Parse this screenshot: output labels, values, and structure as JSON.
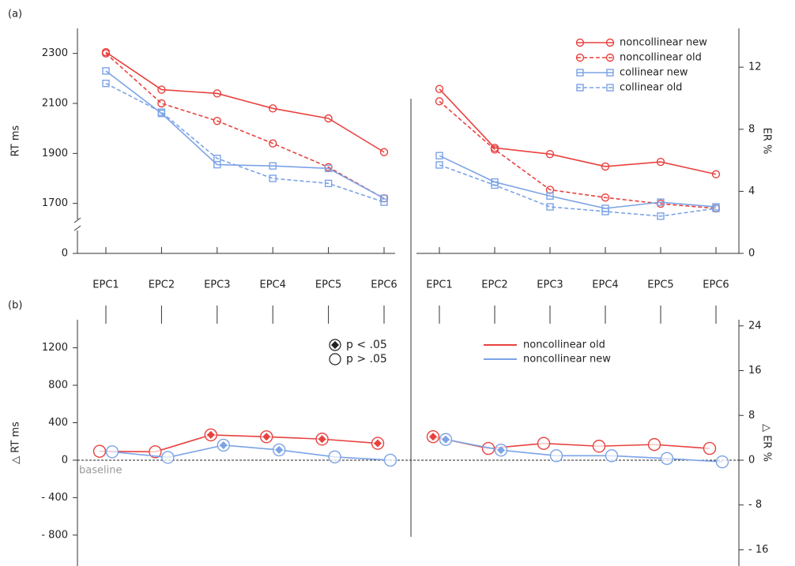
{
  "chart_data": [
    {
      "type": "line",
      "label": "(a)",
      "ylabel": "RT ms",
      "y2label": "ER %",
      "categories": [
        "EPC1",
        "EPC2",
        "EPC3",
        "EPC4",
        "EPC5",
        "EPC6"
      ],
      "ylim": [
        1500,
        2400
      ],
      "yticks": [
        0,
        1700,
        1900,
        2100,
        2300
      ],
      "axis_break": true,
      "y2lim": [
        0,
        14.5
      ],
      "y2ticks": [
        0,
        4,
        8,
        12
      ],
      "legend": "upper right",
      "series": [
        {
          "name": "noncollinear new",
          "color": "#e8423f",
          "dashed": false,
          "marker": "circle",
          "values": [
            2305,
            2155,
            2140,
            2080,
            2040,
            1905
          ],
          "values2": [
            10.6,
            6.8,
            6.4,
            5.6,
            5.9,
            5.1
          ]
        },
        {
          "name": "noncollinear old",
          "color": "#e8423f",
          "dashed": true,
          "marker": "circle",
          "values": [
            2300,
            2100,
            2030,
            1940,
            1845,
            1720
          ],
          "values2": [
            9.8,
            6.7,
            4.1,
            3.6,
            3.2,
            2.9
          ]
        },
        {
          "name": "collinear new",
          "color": "#7ba3e6",
          "dashed": false,
          "marker": "square",
          "values": [
            2230,
            2060,
            1855,
            1850,
            1840,
            1720
          ],
          "values2": [
            6.3,
            4.6,
            3.7,
            2.9,
            3.3,
            3.0
          ]
        },
        {
          "name": "collinear old",
          "color": "#7ba3e6",
          "dashed": true,
          "marker": "square",
          "values": [
            2180,
            2065,
            1880,
            1800,
            1780,
            1705
          ],
          "values2": [
            5.7,
            4.4,
            3.0,
            2.7,
            2.4,
            2.9
          ]
        }
      ]
    },
    {
      "type": "delta",
      "label": "(b)",
      "ylabel": "△ RT ms",
      "y2label": "△ ER %",
      "baseline": "baseline",
      "ylim": [
        -1130,
        1500
      ],
      "yticks": [
        {
          "value": -800,
          "label": "- 800"
        },
        {
          "value": -400,
          "label": "- 400"
        },
        0,
        400,
        800,
        1200
      ],
      "y2lim": [
        -18.9,
        25.1
      ],
      "y2ticks": [
        {
          "value": -16,
          "label": "- 16"
        },
        {
          "value": -8,
          "label": "- 8"
        },
        0,
        8,
        16,
        24
      ],
      "marker_legend": [
        {
          "label": "p < .05",
          "significant": true
        },
        {
          "label": "p > .05",
          "significant": false
        }
      ],
      "series": [
        {
          "name": "noncollinear old",
          "color": "#e8423f",
          "values": [
            95,
            90,
            270,
            250,
            225,
            180
          ],
          "significant": [
            false,
            false,
            true,
            true,
            true,
            true
          ],
          "values2": [
            4.2,
            2.1,
            3.0,
            2.5,
            2.8,
            2.1
          ],
          "significant2": [
            true,
            false,
            false,
            false,
            false,
            false
          ]
        },
        {
          "name": "noncollinear new",
          "color": "#7ba3e6",
          "values": [
            90,
            30,
            160,
            110,
            35,
            0
          ],
          "significant": [
            false,
            false,
            true,
            true,
            false,
            false
          ],
          "values2": [
            3.7,
            1.8,
            0.8,
            0.8,
            0.3,
            -0.3
          ],
          "significant2": [
            true,
            true,
            false,
            false,
            false,
            false
          ]
        }
      ]
    }
  ]
}
